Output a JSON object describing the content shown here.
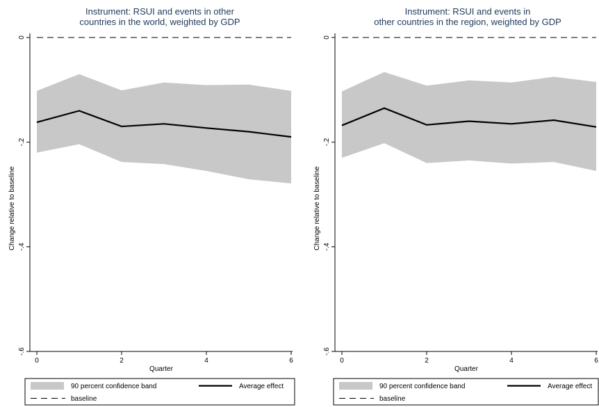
{
  "chart_data": [
    {
      "type": "line",
      "title_lines": [
        "Instrument: RSUI and events in other",
        "countries in the world, weighted by GDP"
      ],
      "xlabel": "Quarter",
      "ylabel": "Change relative to baseline",
      "xlim": [
        0,
        6
      ],
      "ylim": [
        -0.6,
        0
      ],
      "x_ticks": [
        0,
        2,
        4,
        6
      ],
      "x_tick_labels": [
        "0",
        "2",
        "4",
        "6"
      ],
      "y_ticks": [
        0,
        -0.2,
        -0.4,
        -0.6
      ],
      "y_tick_labels": [
        "0",
        "-.2",
        "-.4",
        "-.6"
      ],
      "x": [
        0,
        1,
        2,
        3,
        4,
        5,
        6
      ],
      "series": [
        {
          "name": "Average effect",
          "values": [
            -0.162,
            -0.14,
            -0.17,
            -0.165,
            -0.173,
            -0.18,
            -0.19
          ]
        },
        {
          "name": "90 percent confidence band",
          "lower": [
            -0.22,
            -0.204,
            -0.238,
            -0.242,
            -0.255,
            -0.271,
            -0.279
          ],
          "upper": [
            -0.102,
            -0.07,
            -0.101,
            -0.086,
            -0.091,
            -0.09,
            -0.102
          ]
        },
        {
          "name": "baseline",
          "values": [
            0,
            0,
            0,
            0,
            0,
            0,
            0
          ]
        }
      ],
      "legend": {
        "placement": "bottom",
        "entries": [
          "90 percent confidence band",
          "Average effect",
          "baseline"
        ]
      },
      "colors": {
        "band": "#c8c8c8",
        "line": "#000000",
        "title": "#1f3a5a"
      }
    },
    {
      "type": "line",
      "title_lines": [
        "Instrument: RSUI and events in",
        "other countries in the region, weighted by GDP"
      ],
      "xlabel": "Quarter",
      "ylabel": "Change relative to baseline",
      "xlim": [
        0,
        6
      ],
      "ylim": [
        -0.6,
        0
      ],
      "x_ticks": [
        0,
        2,
        4,
        6
      ],
      "x_tick_labels": [
        "0",
        "2",
        "4",
        "6"
      ],
      "y_ticks": [
        0,
        -0.2,
        -0.4,
        -0.6
      ],
      "y_tick_labels": [
        "0",
        "-.2",
        "-.4",
        "-.6"
      ],
      "x": [
        0,
        1,
        2,
        3,
        4,
        5,
        6
      ],
      "series": [
        {
          "name": "Average effect",
          "values": [
            -0.168,
            -0.135,
            -0.167,
            -0.16,
            -0.165,
            -0.158,
            -0.171
          ]
        },
        {
          "name": "90 percent confidence band",
          "lower": [
            -0.23,
            -0.202,
            -0.24,
            -0.235,
            -0.241,
            -0.238,
            -0.255
          ],
          "upper": [
            -0.103,
            -0.066,
            -0.092,
            -0.082,
            -0.086,
            -0.075,
            -0.085
          ]
        },
        {
          "name": "baseline",
          "values": [
            0,
            0,
            0,
            0,
            0,
            0,
            0
          ]
        }
      ],
      "legend": {
        "placement": "bottom",
        "entries": [
          "90 percent confidence band",
          "Average effect",
          "baseline"
        ]
      },
      "colors": {
        "band": "#c8c8c8",
        "line": "#000000",
        "title": "#1f3a5a"
      }
    }
  ]
}
